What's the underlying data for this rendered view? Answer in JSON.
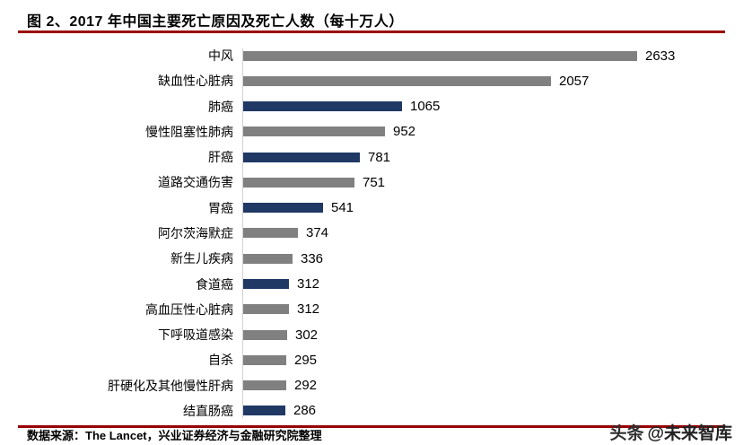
{
  "header": {
    "title": "图 2、2017 年中国主要死亡原因及死亡人数（每十万人）"
  },
  "chart_data": {
    "type": "bar",
    "orientation": "horizontal",
    "title": "2017 年中国主要死亡原因及死亡人数（每十万人）",
    "categories": [
      "中风",
      "缺血性心脏病",
      "肺癌",
      "慢性阻塞性肺病",
      "肝癌",
      "道路交通伤害",
      "胃癌",
      "阿尔茨海默症",
      "新生儿疾病",
      "食道癌",
      "高血压性心脏病",
      "下呼吸道感染",
      "自杀",
      "肝硬化及其他慢性肝病",
      "结直肠癌"
    ],
    "values": [
      2633,
      2057,
      1065,
      952,
      781,
      751,
      541,
      374,
      336,
      312,
      312,
      302,
      295,
      292,
      286
    ],
    "bar_colors": [
      "gray",
      "gray",
      "navy",
      "gray",
      "navy",
      "gray",
      "navy",
      "gray",
      "gray",
      "navy",
      "gray",
      "gray",
      "gray",
      "gray",
      "navy"
    ],
    "palette": {
      "gray": "#808080",
      "navy": "#1f3864"
    },
    "xlim": [
      0,
      2800
    ],
    "value_labels_shown": true,
    "grid": false,
    "legend": "none"
  },
  "footer": {
    "source": "数据来源：The Lancet，兴业证券经济与金融研究院整理"
  },
  "watermark": {
    "badge": "头条",
    "handle": "@未来智库"
  },
  "colors": {
    "rule": "#990000",
    "bar_gray": "#808080",
    "bar_navy": "#1f3864"
  }
}
